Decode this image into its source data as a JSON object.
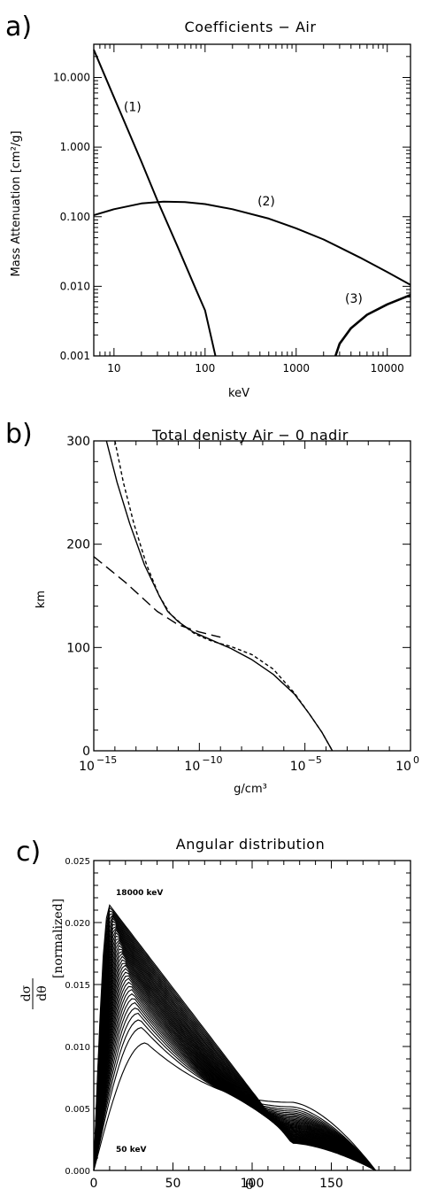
{
  "chart_data": [
    {
      "panel_letter": "a)",
      "type": "line",
      "title": "Coefficients − Air",
      "xlabel": "keV",
      "ylabel": "Mass Attenuation [cm²/g]",
      "xscale": "log",
      "yscale": "log",
      "xlim": [
        6,
        18000
      ],
      "ylim": [
        0.001,
        30
      ],
      "xticks": [
        10,
        100,
        1000,
        10000
      ],
      "xtick_labels": [
        "10",
        "100",
        "1000",
        "10000"
      ],
      "yticks": [
        0.001,
        0.01,
        0.1,
        1,
        10
      ],
      "ytick_labels": [
        "0.001",
        "0.010",
        "0.100",
        "1.000",
        "10.000"
      ],
      "series": [
        {
          "name": "(1)",
          "x": [
            6,
            10,
            20,
            30,
            50,
            80,
            100,
            130
          ],
          "y": [
            25,
            5.2,
            0.62,
            0.17,
            0.037,
            0.0088,
            0.0045,
            0.001
          ]
        },
        {
          "name": "(2)",
          "x": [
            6,
            10,
            20,
            35,
            60,
            100,
            200,
            500,
            1000,
            2000,
            5000,
            10000,
            18000
          ],
          "y": [
            0.105,
            0.128,
            0.155,
            0.165,
            0.162,
            0.152,
            0.128,
            0.094,
            0.068,
            0.047,
            0.026,
            0.016,
            0.0105
          ]
        },
        {
          "name": "(3)",
          "x": [
            2700,
            3000,
            4000,
            6000,
            10000,
            18000
          ],
          "y": [
            0.001,
            0.0015,
            0.0025,
            0.0039,
            0.0055,
            0.0075
          ]
        }
      ],
      "annotations": [
        {
          "text": "(1)",
          "x": 16,
          "y": 3.3
        },
        {
          "text": "(2)",
          "x": 470,
          "y": 0.145
        },
        {
          "text": "(3)",
          "x": 4300,
          "y": 0.0058
        }
      ]
    },
    {
      "panel_letter": "b)",
      "type": "line",
      "title": "Total denisty Air − 0 nadir",
      "xlabel": "g/cm³",
      "ylabel": "km",
      "xscale": "log",
      "xlim": [
        -15,
        0
      ],
      "x_units_note": "log10(g/cm3)",
      "ylim": [
        0,
        300
      ],
      "xticks": [
        -15,
        -10,
        -5,
        0
      ],
      "xtick_labels": [
        "10",
        "10",
        "10",
        "10"
      ],
      "xtick_exponents": [
        "−15",
        "−10",
        "−5",
        "0"
      ],
      "yticks": [
        0,
        100,
        200,
        300
      ],
      "ytick_labels": [
        "0",
        "100",
        "200",
        "300"
      ],
      "series": [
        {
          "name": "solid",
          "style": "solid",
          "x": [
            -14.4,
            -13.9,
            -13.3,
            -12.6,
            -11.9,
            -11.5,
            -11.0,
            -10.3,
            -9.4,
            -8.5,
            -7.5,
            -6.5,
            -5.5,
            -4.8,
            -4.2,
            -3.7
          ],
          "y": [
            300,
            260,
            220,
            180,
            150,
            135,
            125,
            115,
            107,
            99,
            88,
            74,
            55,
            36,
            18,
            0
          ]
        },
        {
          "name": "short-dashed",
          "style": "short-dash",
          "x": [
            -14.0,
            -13.6,
            -13.1,
            -12.5,
            -11.9,
            -11.4,
            -10.8,
            -10.2,
            -9.4,
            -8.5,
            -7.5,
            -6.5,
            -5.5,
            -4.8,
            -4.2,
            -3.7
          ],
          "y": [
            300,
            260,
            220,
            180,
            150,
            133,
            122,
            113,
            106,
            101,
            93,
            79,
            56,
            36,
            18,
            0
          ]
        },
        {
          "name": "long-dashed",
          "style": "long-dash",
          "x": [
            -15.0,
            -13.5,
            -12.0,
            -11.0,
            -10.0,
            -9.0
          ],
          "y": [
            188,
            163,
            135,
            122,
            115,
            110
          ]
        }
      ]
    },
    {
      "panel_letter": "c)",
      "type": "line",
      "title": "Angular distribution",
      "xlabel": "θ",
      "ylabel": "[normalized]",
      "ylabel_fraction": {
        "num": "dσ",
        "den": "dθ"
      },
      "xlim": [
        0,
        200
      ],
      "ylim": [
        0,
        0.025
      ],
      "xticks": [
        0,
        50,
        100,
        150
      ],
      "xtick_labels": [
        "0",
        "50",
        "100",
        "150"
      ],
      "yticks": [
        0,
        0.005,
        0.01,
        0.015,
        0.02,
        0.025
      ],
      "ytick_labels": [
        "0.000",
        "0.005",
        "0.010",
        "0.015",
        "0.020",
        "0.025"
      ],
      "curve_family": {
        "count": 40,
        "energy_range_keV": [
          50,
          18000
        ],
        "low_energy_curve": {
          "peak_theta": 33,
          "peak_value": 0.0103,
          "shoulder_theta": 125,
          "shoulder_value": 0.0055
        },
        "high_energy_curve": {
          "peak_theta": 10,
          "peak_value": 0.0214,
          "tail_theta": 150,
          "tail_value": 0.0005
        },
        "x_end": 178
      },
      "annotations": [
        {
          "text": "18000 keV",
          "x": 14,
          "y": 0.0222
        },
        {
          "text": "50 keV",
          "x": 14,
          "y": 0.0015
        }
      ]
    }
  ]
}
